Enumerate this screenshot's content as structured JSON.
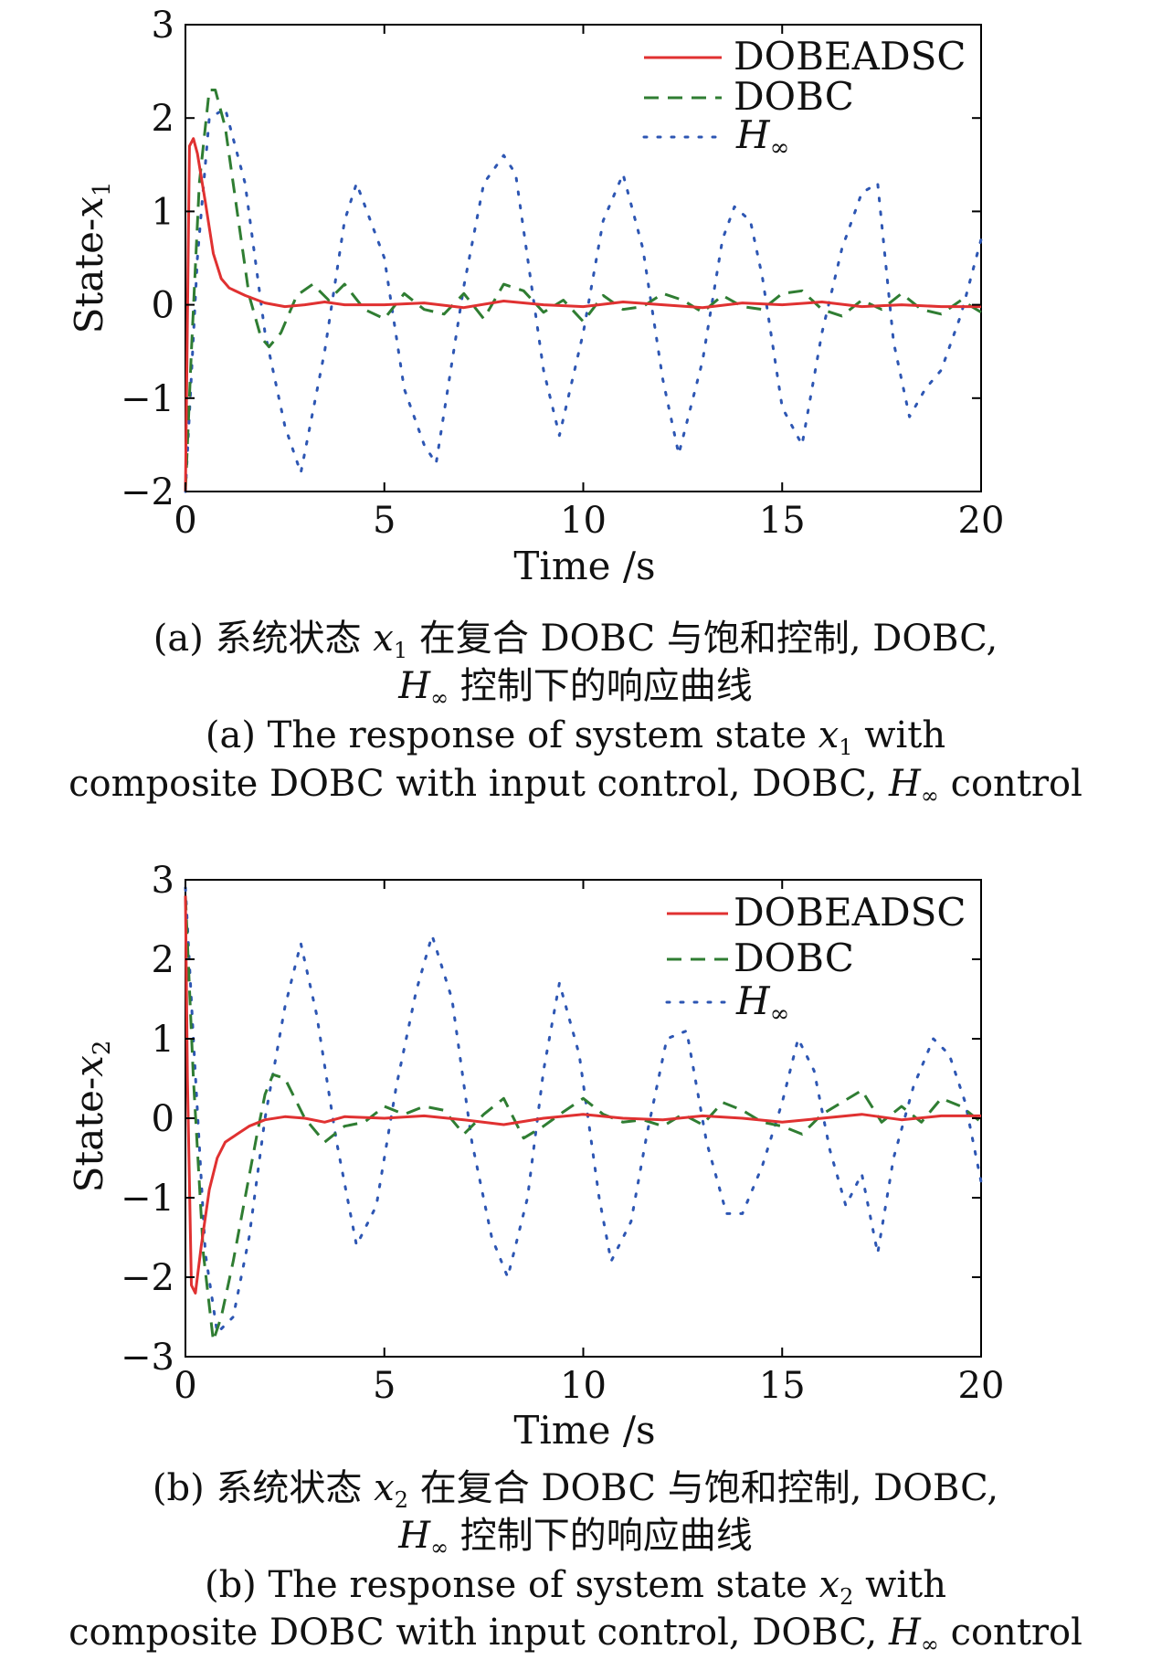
{
  "chart_data": [
    {
      "type": "line",
      "panel": "a",
      "xlabel": "Time /s",
      "ylabel": "State-x1",
      "ylabel_main": "State-",
      "ylabel_var": "x",
      "ylabel_sub": "1",
      "xlim": [
        0,
        20
      ],
      "ylim": [
        -2,
        3
      ],
      "xticks": [
        0,
        5,
        10,
        15,
        20
      ],
      "yticks": [
        -2,
        -1,
        0,
        1,
        2,
        3
      ],
      "ytick_labels": [
        "−2",
        "−1",
        "0",
        "1",
        "2",
        "3"
      ],
      "grid": false,
      "legend_position": "top-right",
      "legend": [
        {
          "text": "DOBEADSC",
          "main": "DOBEADSC",
          "sub": "",
          "italic": false
        },
        {
          "text": "DOBC",
          "main": "DOBC",
          "sub": "",
          "italic": false
        },
        {
          "text": "H∞",
          "main": "H",
          "sub": "∞",
          "italic": true
        }
      ],
      "series": [
        {
          "name": "DOBEADSC",
          "color": "#e03131",
          "style": "solid",
          "x": [
            0,
            0.1,
            0.2,
            0.3,
            0.5,
            0.7,
            0.9,
            1.1,
            1.5,
            2,
            2.5,
            3,
            3.5,
            4,
            5,
            6,
            7,
            8,
            9,
            10,
            11,
            12,
            13,
            14,
            15,
            16,
            17,
            18,
            19,
            20
          ],
          "values": [
            -2.0,
            1.7,
            1.78,
            1.62,
            1.1,
            0.55,
            0.28,
            0.18,
            0.1,
            0.02,
            -0.02,
            0.0,
            0.03,
            0.0,
            0.0,
            0.02,
            -0.03,
            0.04,
            0.0,
            -0.02,
            0.03,
            0.0,
            -0.03,
            0.02,
            0.0,
            0.03,
            -0.02,
            0.0,
            -0.02,
            -0.02
          ]
        },
        {
          "name": "DOBC",
          "color": "#2f7d32",
          "style": "dashed",
          "x": [
            0,
            0.15,
            0.35,
            0.6,
            0.75,
            1.0,
            1.3,
            1.6,
            1.9,
            2.1,
            2.4,
            2.8,
            3.2,
            3.6,
            4.0,
            4.5,
            5.0,
            5.5,
            6.0,
            6.5,
            7.0,
            7.5,
            8.0,
            8.5,
            9.0,
            9.5,
            10.0,
            10.5,
            11.0,
            11.5,
            12.0,
            12.5,
            13.0,
            13.5,
            14.0,
            14.5,
            15.0,
            15.5,
            16.0,
            16.5,
            17.0,
            17.5,
            18.0,
            18.5,
            19.0,
            19.5,
            20.0
          ],
          "values": [
            -2.0,
            -0.5,
            1.3,
            2.3,
            2.3,
            1.9,
            1.0,
            0.1,
            -0.35,
            -0.45,
            -0.3,
            0.1,
            0.22,
            0.05,
            0.22,
            -0.05,
            -0.15,
            0.12,
            -0.05,
            -0.1,
            0.12,
            -0.15,
            0.22,
            0.15,
            -0.08,
            0.05,
            -0.18,
            0.1,
            -0.05,
            -0.02,
            0.12,
            0.05,
            -0.08,
            0.1,
            -0.02,
            -0.05,
            0.12,
            0.15,
            -0.05,
            -0.12,
            0.05,
            -0.05,
            0.12,
            -0.05,
            -0.1,
            0.05,
            -0.08
          ]
        },
        {
          "name": "H∞",
          "color": "#2d56b3",
          "style": "dotted",
          "x": [
            0,
            0.3,
            0.6,
            1.0,
            1.5,
            2.0,
            2.5,
            2.9,
            3.5,
            4.0,
            4.3,
            5.0,
            5.5,
            6.0,
            6.3,
            7.0,
            7.5,
            8.0,
            8.3,
            9.0,
            9.4,
            10.0,
            10.5,
            11.0,
            11.5,
            12.0,
            12.4,
            13.0,
            13.5,
            13.8,
            14.2,
            14.5,
            15.0,
            15.5,
            16.0,
            16.5,
            17.0,
            17.4,
            17.8,
            18.2,
            18.6,
            19.0,
            19.5,
            20.0
          ],
          "values": [
            -2.0,
            0.5,
            2.0,
            2.1,
            1.3,
            -0.3,
            -1.3,
            -1.8,
            -0.5,
            0.9,
            1.3,
            0.5,
            -0.9,
            -1.5,
            -1.7,
            0.2,
            1.3,
            1.6,
            1.4,
            -0.7,
            -1.4,
            -0.3,
            0.9,
            1.4,
            0.6,
            -0.8,
            -1.6,
            -0.6,
            0.7,
            1.05,
            0.9,
            0.3,
            -1.1,
            -1.5,
            -0.3,
            0.6,
            1.2,
            1.3,
            -0.4,
            -1.2,
            -0.9,
            -0.7,
            -0.1,
            0.7
          ]
        }
      ]
    },
    {
      "type": "line",
      "panel": "b",
      "xlabel": "Time /s",
      "ylabel": "State-x2",
      "ylabel_main": "State-",
      "ylabel_var": "x",
      "ylabel_sub": "2",
      "xlim": [
        0,
        20
      ],
      "ylim": [
        -3,
        3
      ],
      "xticks": [
        0,
        5,
        10,
        15,
        20
      ],
      "yticks": [
        -3,
        -2,
        -1,
        0,
        1,
        2,
        3
      ],
      "ytick_labels": [
        "−3",
        "−2",
        "−1",
        "0",
        "1",
        "2",
        "3"
      ],
      "grid": false,
      "legend_position": "top-right",
      "legend": [
        {
          "text": "DOBEADSC",
          "main": "DOBEADSC",
          "sub": "",
          "italic": false
        },
        {
          "text": "DOBC",
          "main": "DOBC",
          "sub": "",
          "italic": false
        },
        {
          "text": "H∞",
          "main": "H",
          "sub": "∞",
          "italic": true
        }
      ],
      "series": [
        {
          "name": "DOBEADSC",
          "color": "#e03131",
          "style": "solid",
          "x": [
            0,
            0.05,
            0.15,
            0.25,
            0.4,
            0.6,
            0.8,
            1.0,
            1.3,
            1.6,
            2.0,
            2.5,
            3.0,
            3.5,
            4.0,
            5.0,
            6.0,
            7.0,
            8.0,
            9.0,
            10.0,
            11.0,
            12.0,
            13.0,
            14.0,
            15.0,
            16.0,
            17.0,
            18.0,
            19.0,
            20.0
          ],
          "values": [
            2.8,
            0.5,
            -2.1,
            -2.2,
            -1.6,
            -0.9,
            -0.5,
            -0.3,
            -0.2,
            -0.1,
            -0.02,
            0.02,
            0.0,
            -0.05,
            0.02,
            0.0,
            0.03,
            -0.02,
            -0.08,
            0.0,
            0.05,
            0.0,
            -0.02,
            0.03,
            0.0,
            -0.05,
            0.0,
            0.05,
            -0.02,
            0.03,
            0.03
          ]
        },
        {
          "name": "DOBC",
          "color": "#2f7d32",
          "style": "dashed",
          "x": [
            0,
            0.2,
            0.45,
            0.7,
            0.9,
            1.2,
            1.5,
            1.8,
            2.0,
            2.2,
            2.5,
            3.0,
            3.5,
            4.0,
            4.5,
            5.0,
            5.5,
            6.0,
            6.5,
            7.0,
            7.5,
            8.0,
            8.5,
            9.0,
            9.5,
            10.0,
            10.5,
            11.0,
            11.5,
            12.0,
            12.5,
            13.0,
            13.5,
            14.0,
            14.5,
            15.0,
            15.5,
            16.0,
            16.5,
            17.0,
            17.5,
            18.0,
            18.5,
            19.0,
            19.5,
            20.0
          ],
          "values": [
            2.8,
            0.5,
            -1.7,
            -2.8,
            -2.5,
            -1.8,
            -1.0,
            -0.2,
            0.3,
            0.55,
            0.5,
            0.0,
            -0.3,
            -0.1,
            -0.05,
            0.15,
            0.05,
            0.15,
            0.1,
            -0.2,
            0.05,
            0.25,
            -0.25,
            -0.1,
            0.08,
            0.25,
            0.05,
            -0.05,
            -0.02,
            -0.1,
            0.05,
            -0.08,
            0.2,
            0.1,
            -0.05,
            -0.1,
            -0.2,
            0.05,
            0.2,
            0.35,
            -0.05,
            0.15,
            -0.05,
            0.25,
            0.15,
            -0.05
          ]
        },
        {
          "name": "H∞",
          "color": "#2d56b3",
          "style": "dotted",
          "x": [
            0,
            0.2,
            0.5,
            0.8,
            1.2,
            1.6,
            2.0,
            2.5,
            2.9,
            3.3,
            3.8,
            4.3,
            4.8,
            5.3,
            5.8,
            6.2,
            6.7,
            7.2,
            7.7,
            8.1,
            8.6,
            9.0,
            9.4,
            9.9,
            10.4,
            10.7,
            11.2,
            11.6,
            12.1,
            12.6,
            13.1,
            13.6,
            14.0,
            14.5,
            15.0,
            15.4,
            15.8,
            16.2,
            16.6,
            17.0,
            17.4,
            17.8,
            18.3,
            18.8,
            19.2,
            19.6,
            20.0
          ],
          "values": [
            2.9,
            1.0,
            -1.7,
            -2.7,
            -2.5,
            -1.5,
            0.0,
            1.4,
            2.2,
            1.3,
            -0.3,
            -1.6,
            -1.1,
            0.4,
            1.6,
            2.3,
            1.5,
            -0.3,
            -1.5,
            -2.0,
            -1.0,
            0.6,
            1.7,
            0.8,
            -1.0,
            -1.8,
            -1.3,
            -0.2,
            1.0,
            1.1,
            -0.3,
            -1.2,
            -1.2,
            -0.6,
            0.2,
            1.0,
            0.6,
            -0.4,
            -1.1,
            -0.7,
            -1.7,
            -0.5,
            0.4,
            1.0,
            0.8,
            0.2,
            -0.8
          ]
        }
      ]
    }
  ],
  "captions": {
    "a_cn_1_prefix": "(a) 系统状态 ",
    "a_cn_1_var": "x",
    "a_cn_1_sub": "1",
    "a_cn_1_suffix": " 在复合 DOBC 与饱和控制, DOBC,",
    "a_cn_2_var": "H",
    "a_cn_2_sub": "∞",
    "a_cn_2_suffix": " 控制下的响应曲线",
    "a_en_1_prefix": "(a) The response of system state ",
    "a_en_1_var": "x",
    "a_en_1_sub": "1",
    "a_en_1_suffix": " with",
    "a_en_2_prefix": "composite DOBC with input control, DOBC, ",
    "a_en_2_var": "H",
    "a_en_2_sub": "∞",
    "a_en_2_suffix": " control",
    "b_cn_1_prefix": "(b) 系统状态 ",
    "b_cn_1_var": "x",
    "b_cn_1_sub": "2",
    "b_cn_1_suffix": " 在复合 DOBC 与饱和控制, DOBC,",
    "b_cn_2_var": "H",
    "b_cn_2_sub": "∞",
    "b_cn_2_suffix": " 控制下的响应曲线",
    "b_en_1_prefix": "(b) The response of system state ",
    "b_en_1_var": "x",
    "b_en_1_sub": "2",
    "b_en_1_suffix": " with",
    "b_en_2_prefix": "composite DOBC with input control, DOBC, ",
    "b_en_2_var": "H",
    "b_en_2_sub": "∞",
    "b_en_2_suffix": " control"
  }
}
